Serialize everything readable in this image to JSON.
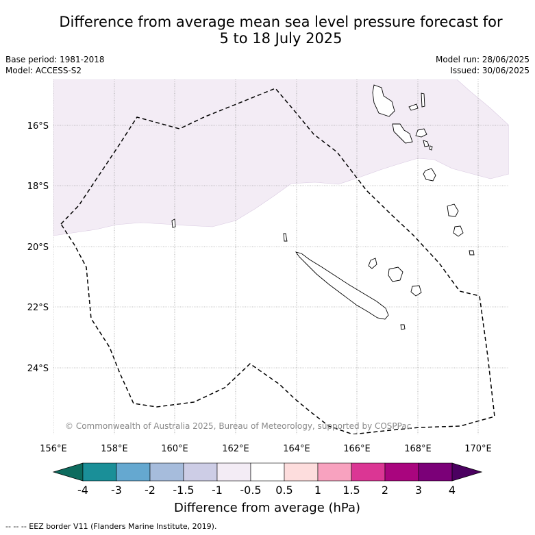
{
  "title": {
    "line1": "Difference from average mean sea level pressure forecast for",
    "line2": "5 to 18 July 2025"
  },
  "meta": {
    "base_period": "Base period: 1981-2018",
    "model": "Model: ACCESS-S2",
    "model_run": "Model run: 28/06/2025",
    "issued": "Issued: 30/06/2025"
  },
  "map": {
    "lon_ticks": [
      "156°E",
      "158°E",
      "160°E",
      "162°E",
      "164°E",
      "166°E",
      "168°E",
      "170°E"
    ],
    "lat_ticks": [
      "16°S",
      "18°S",
      "20°S",
      "22°S",
      "24°S"
    ],
    "copyright": "© Commonwealth of Australia 2025, Bureau of Meteorology, supported by COSPPac",
    "shaded_band": "-1 to -0.5"
  },
  "colorbar": {
    "label": "Difference from average (hPa)",
    "ticks": [
      "-4",
      "-3",
      "-2",
      "-1.5",
      "-1",
      "-0.5",
      "0.5",
      "1",
      "1.5",
      "2",
      "3",
      "4"
    ],
    "colors": {
      "under": "#0d6b5e",
      "bins": [
        "#1a8f98",
        "#65a8d0",
        "#a6bcdc",
        "#cdcde6",
        "#f3ecf5",
        "#ffffff",
        "#fddddd",
        "#f8a2bf",
        "#db3694",
        "#a9057e",
        "#7b0078"
      ],
      "over": "#4b0060"
    }
  },
  "footer": {
    "legend": "--  --  -- EEZ border V11 (Flanders Marine Institute, 2019)."
  }
}
